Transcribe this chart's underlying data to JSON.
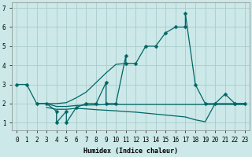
{
  "xlabel": "Humidex (Indice chaleur)",
  "background_color": "#cce8e8",
  "grid_color": "#aacccc",
  "line_color": "#006666",
  "xlim": [
    -0.5,
    23.5
  ],
  "ylim": [
    0.6,
    7.3
  ],
  "xticks": [
    0,
    1,
    2,
    3,
    4,
    5,
    6,
    7,
    8,
    9,
    10,
    11,
    12,
    13,
    14,
    15,
    16,
    17,
    18,
    19,
    20,
    21,
    22,
    23
  ],
  "yticks": [
    1,
    2,
    3,
    4,
    5,
    6,
    7
  ],
  "figsize": [
    3.2,
    2.0
  ],
  "dpi": 100,
  "line_width": 0.9,
  "marker_size": 2.5,
  "line1_x": [
    0,
    1,
    2,
    3,
    4,
    4,
    5,
    5,
    6,
    7,
    8,
    9,
    9,
    10,
    11,
    11,
    12,
    13,
    14,
    15,
    16,
    17,
    17,
    18,
    19,
    20,
    21,
    22,
    22,
    23
  ],
  "line1_y": [
    3,
    3,
    2,
    2,
    1.6,
    1.0,
    1.6,
    1.0,
    1.8,
    2.0,
    2.0,
    3.1,
    2.0,
    2.0,
    4.5,
    4.1,
    4.1,
    5.0,
    5.0,
    5.7,
    6.0,
    6.0,
    6.7,
    3.0,
    2.0,
    2.0,
    2.5,
    2.0,
    2.0,
    2.0
  ],
  "line2_x": [
    2,
    3,
    4,
    5,
    6,
    7,
    8,
    9,
    10,
    11
  ],
  "line2_y": [
    2.0,
    2.0,
    2.0,
    2.05,
    2.3,
    2.6,
    3.1,
    3.6,
    4.05,
    4.1
  ],
  "line3_x": [
    3,
    4,
    5,
    6,
    7,
    8,
    9,
    10,
    11,
    12,
    13,
    14,
    15,
    16,
    17,
    18,
    19,
    20,
    21,
    22,
    23
  ],
  "line3_y": [
    2.0,
    1.85,
    1.85,
    1.9,
    1.92,
    1.93,
    1.95,
    1.95,
    1.95,
    1.95,
    1.95,
    1.95,
    1.95,
    1.95,
    1.95,
    1.95,
    1.95,
    1.95,
    1.95,
    1.95,
    1.95
  ],
  "line4_x": [
    3,
    4,
    5,
    6,
    7,
    8,
    9,
    10,
    11,
    12,
    13,
    14,
    15,
    16,
    17,
    18,
    19,
    20,
    21,
    22,
    23
  ],
  "line4_y": [
    1.8,
    1.7,
    1.7,
    1.75,
    1.72,
    1.68,
    1.65,
    1.62,
    1.58,
    1.55,
    1.5,
    1.45,
    1.4,
    1.35,
    1.3,
    1.15,
    1.05,
    2.0,
    2.0,
    2.0,
    2.0
  ]
}
